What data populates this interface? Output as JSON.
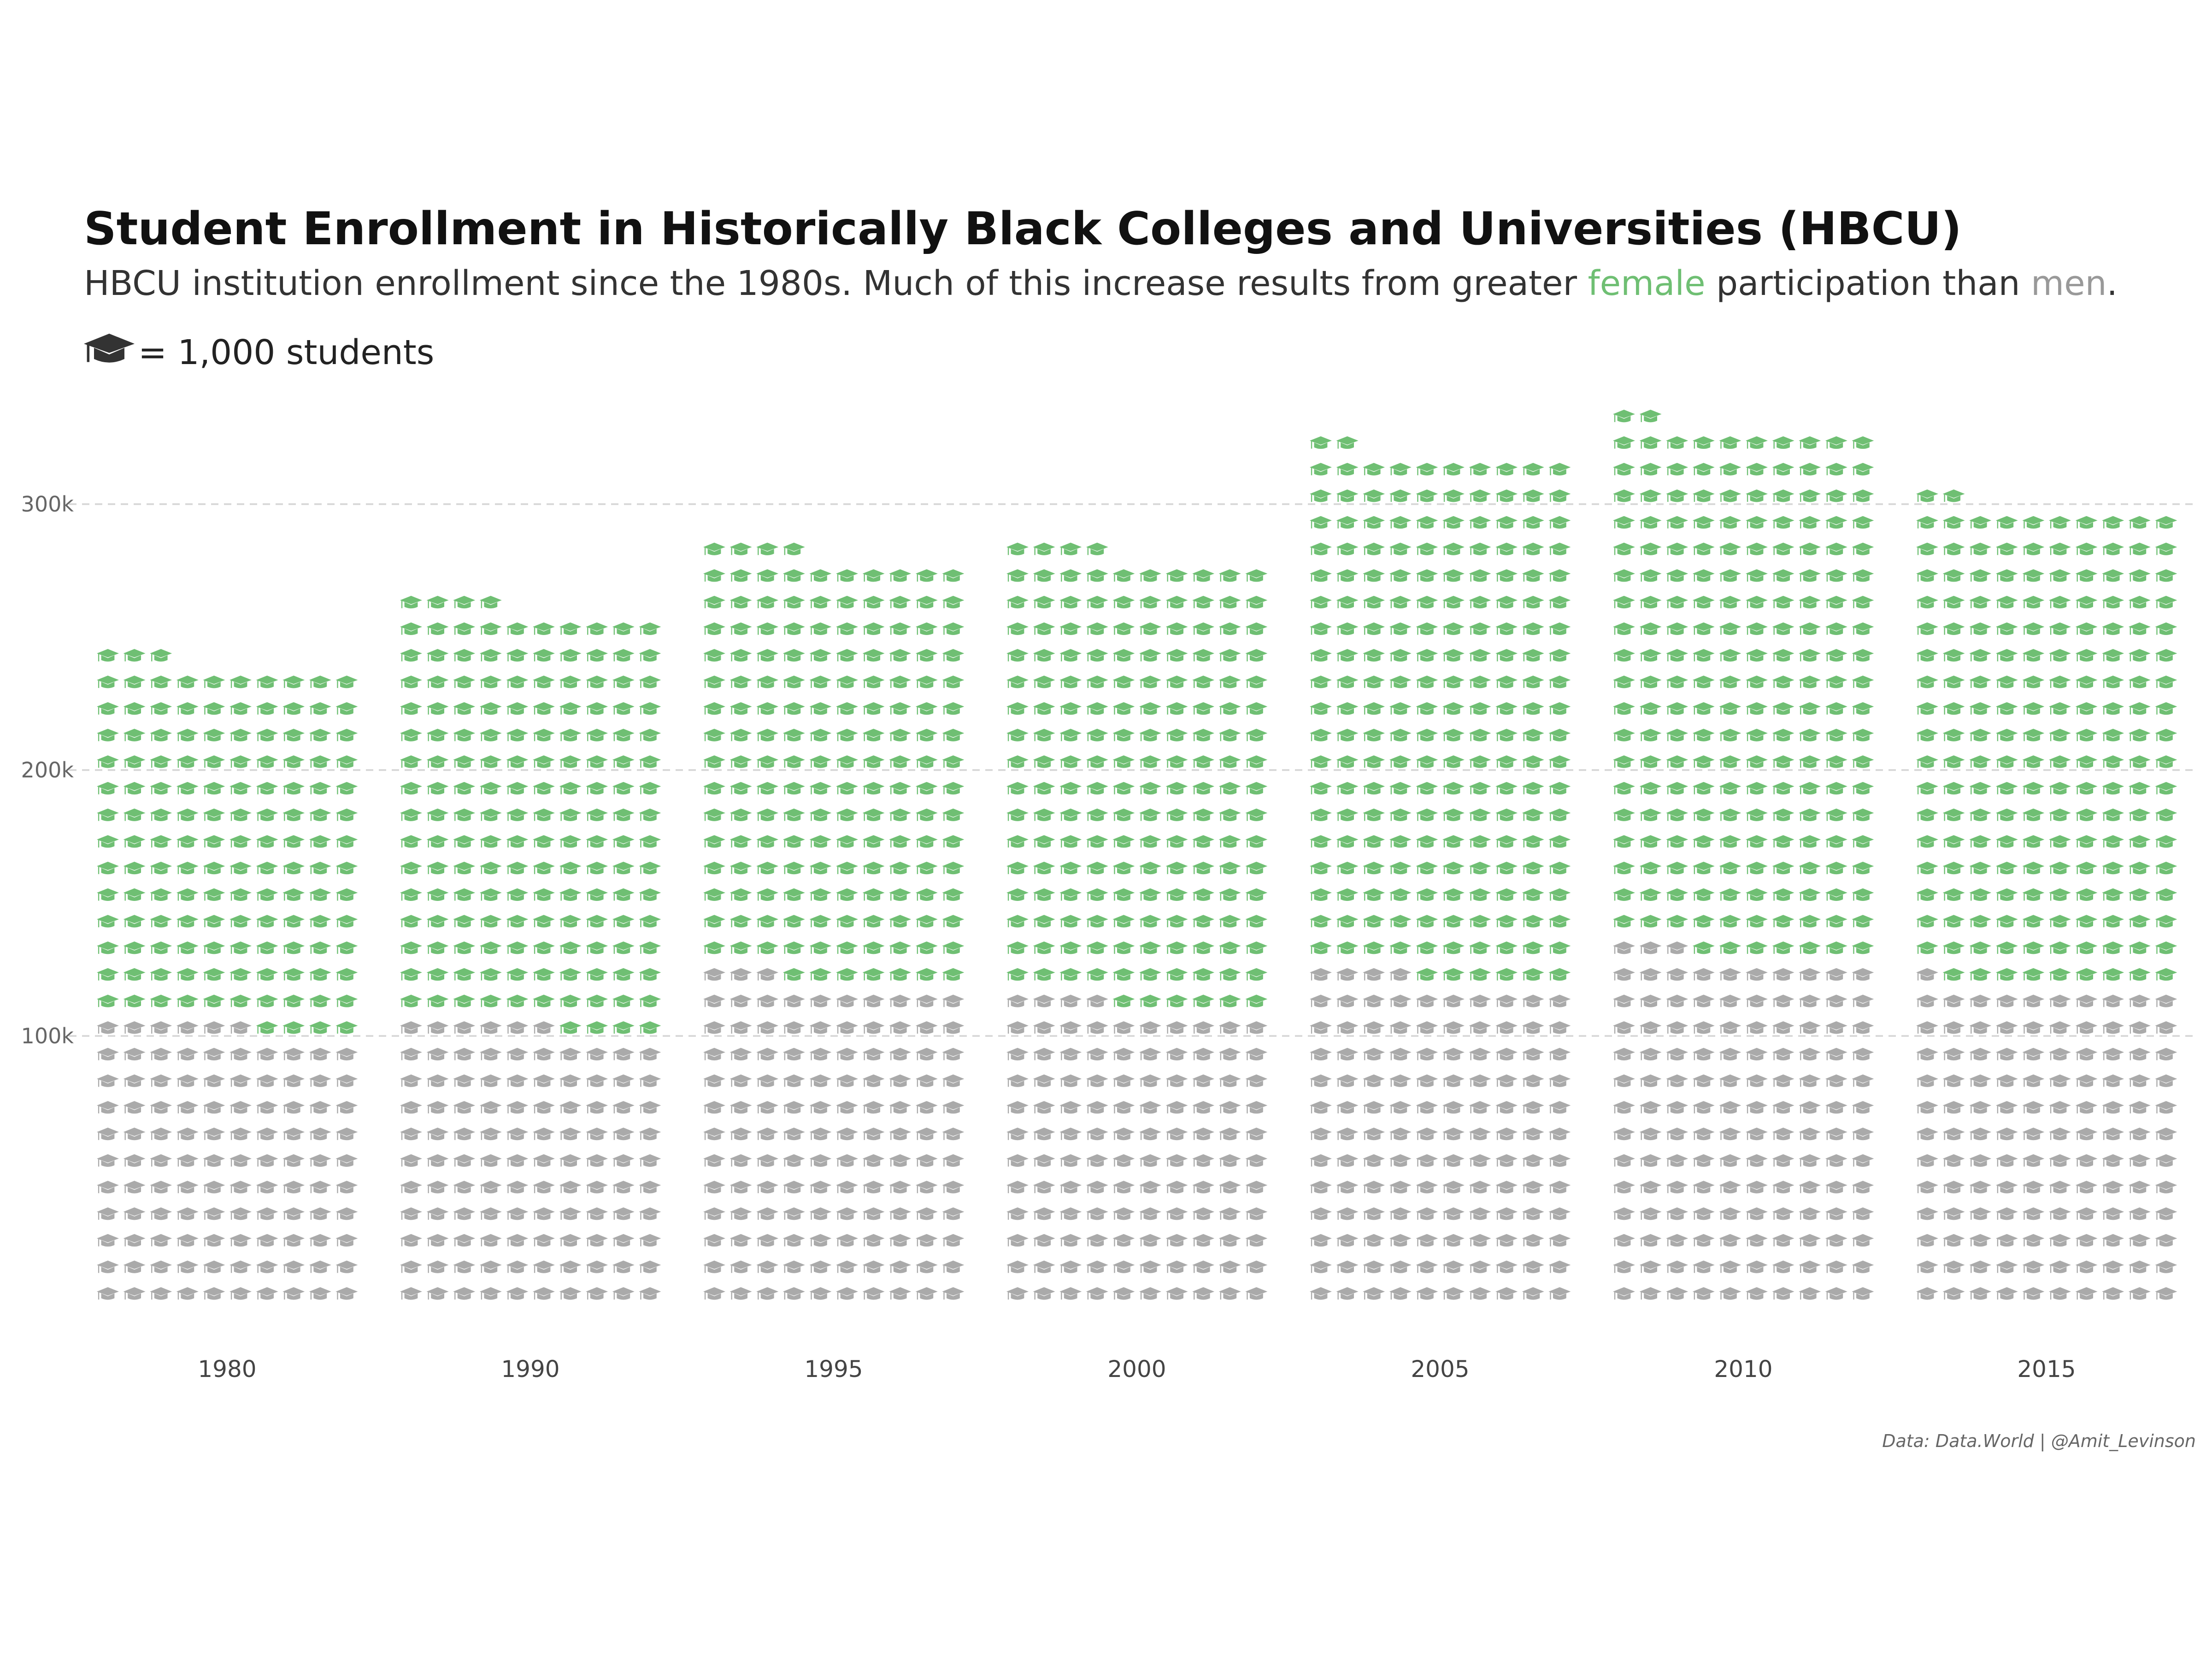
{
  "chart_data": {
    "type": "waffle",
    "title": "Student Enrollment in Historically Black Colleges and Universities (HBCU)",
    "subtitle": {
      "before": "HBCU institution enrollment since the 1980s. Much of this increase results from greater ",
      "female_word": "female",
      "middle": " participation than ",
      "male_word": "men",
      "after": "."
    },
    "legend": {
      "icon": "graduation-cap-icon",
      "label": "= 1,000 students"
    },
    "unit_value": 1000,
    "y_ticks": [
      {
        "value": 100000,
        "label": "100k"
      },
      {
        "value": 200000,
        "label": "200k"
      },
      {
        "value": 300000,
        "label": "300k"
      }
    ],
    "ylim": [
      0,
      340000
    ],
    "series": [
      {
        "name": "men",
        "color": "#aaaaaa"
      },
      {
        "name": "female",
        "color": "#6fbf73"
      }
    ],
    "categories": [
      "1980",
      "1990",
      "1995",
      "2000",
      "2005",
      "2010",
      "2015"
    ],
    "men": [
      106000,
      106000,
      123000,
      114000,
      124000,
      133000,
      121000
    ],
    "female": [
      137000,
      158000,
      161000,
      170000,
      198000,
      199000,
      181000
    ],
    "caption": "Data: Data.World | @Amit_Levinson"
  }
}
